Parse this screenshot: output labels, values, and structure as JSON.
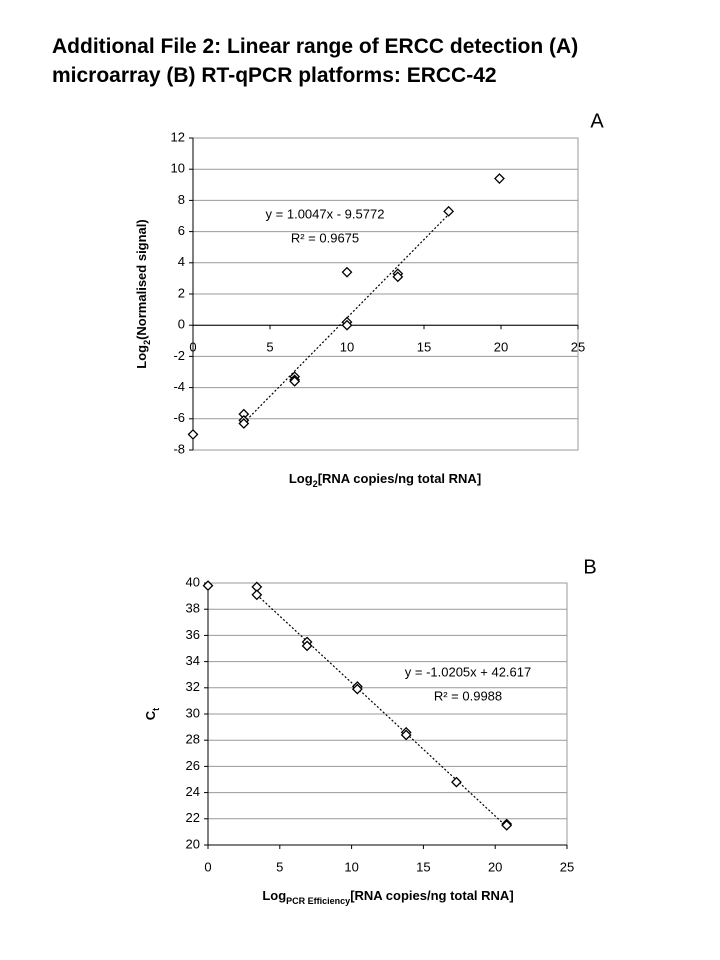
{
  "title": "Additional File 2: Linear range of ERCC detection (A) microarray (B) RT-qPCR platforms: ERCC-42",
  "chart_data": [
    {
      "type": "scatter",
      "panel": "A",
      "x_label": {
        "base": "Log",
        "sub": "2",
        "rest": "[RNA copies/ng total RNA]"
      },
      "y_label": {
        "base": "Log",
        "sub": "2",
        "rest": "(Normalised signal)"
      },
      "x": [
        0,
        3.3,
        3.3,
        3.3,
        6.6,
        6.6,
        6.6,
        10,
        10,
        10,
        13.3,
        13.3,
        16.6,
        19.9
      ],
      "series": [
        {
          "color": "#000000",
          "values": [
            -7,
            -5.7,
            -6.1,
            -6.3,
            -3.3,
            -3.5,
            -3.6,
            3.4,
            0.2,
            0.0,
            3.3,
            3.1,
            7.3,
            9.4
          ]
        }
      ],
      "trendline": {
        "x": [
          3.3,
          16.6
        ],
        "y": [
          -6.26,
          7.1
        ]
      },
      "annotations": [
        "y = 1.0047x - 9.5772",
        "R² = 0.9675"
      ],
      "xlim": [
        0,
        25
      ],
      "xticks": [
        0,
        5,
        10,
        15,
        20,
        25
      ],
      "ylim": [
        -8,
        12
      ],
      "yticks": [
        -8,
        -6,
        -4,
        -2,
        0,
        2,
        4,
        6,
        8,
        10,
        12
      ],
      "grid": true
    },
    {
      "type": "scatter",
      "panel": "B",
      "x_label": {
        "base": "Log",
        "sub": "PCR Efficiency",
        "rest": "[RNA copies/ng total RNA]"
      },
      "y_label": {
        "base": "C",
        "sub": "t",
        "rest": ""
      },
      "x": [
        0,
        3.4,
        3.4,
        6.9,
        6.9,
        10.4,
        10.4,
        13.8,
        13.8,
        17.3,
        20.8,
        20.8
      ],
      "series": [
        {
          "color": "#000000",
          "values": [
            39.8,
            39.7,
            39.1,
            35.5,
            35.2,
            32.1,
            31.9,
            28.6,
            28.4,
            24.8,
            21.6,
            21.5
          ]
        }
      ],
      "trendline": {
        "x": [
          3.4,
          20.8
        ],
        "y": [
          39.1,
          21.4
        ]
      },
      "annotations": [
        "y = -1.0205x + 42.617",
        "R² = 0.9988"
      ],
      "xlim": [
        0,
        25
      ],
      "xticks": [
        0,
        5,
        10,
        15,
        20,
        25
      ],
      "ylim": [
        20,
        40
      ],
      "yticks": [
        20,
        22,
        24,
        26,
        28,
        30,
        32,
        34,
        36,
        38,
        40
      ],
      "grid": true
    }
  ]
}
